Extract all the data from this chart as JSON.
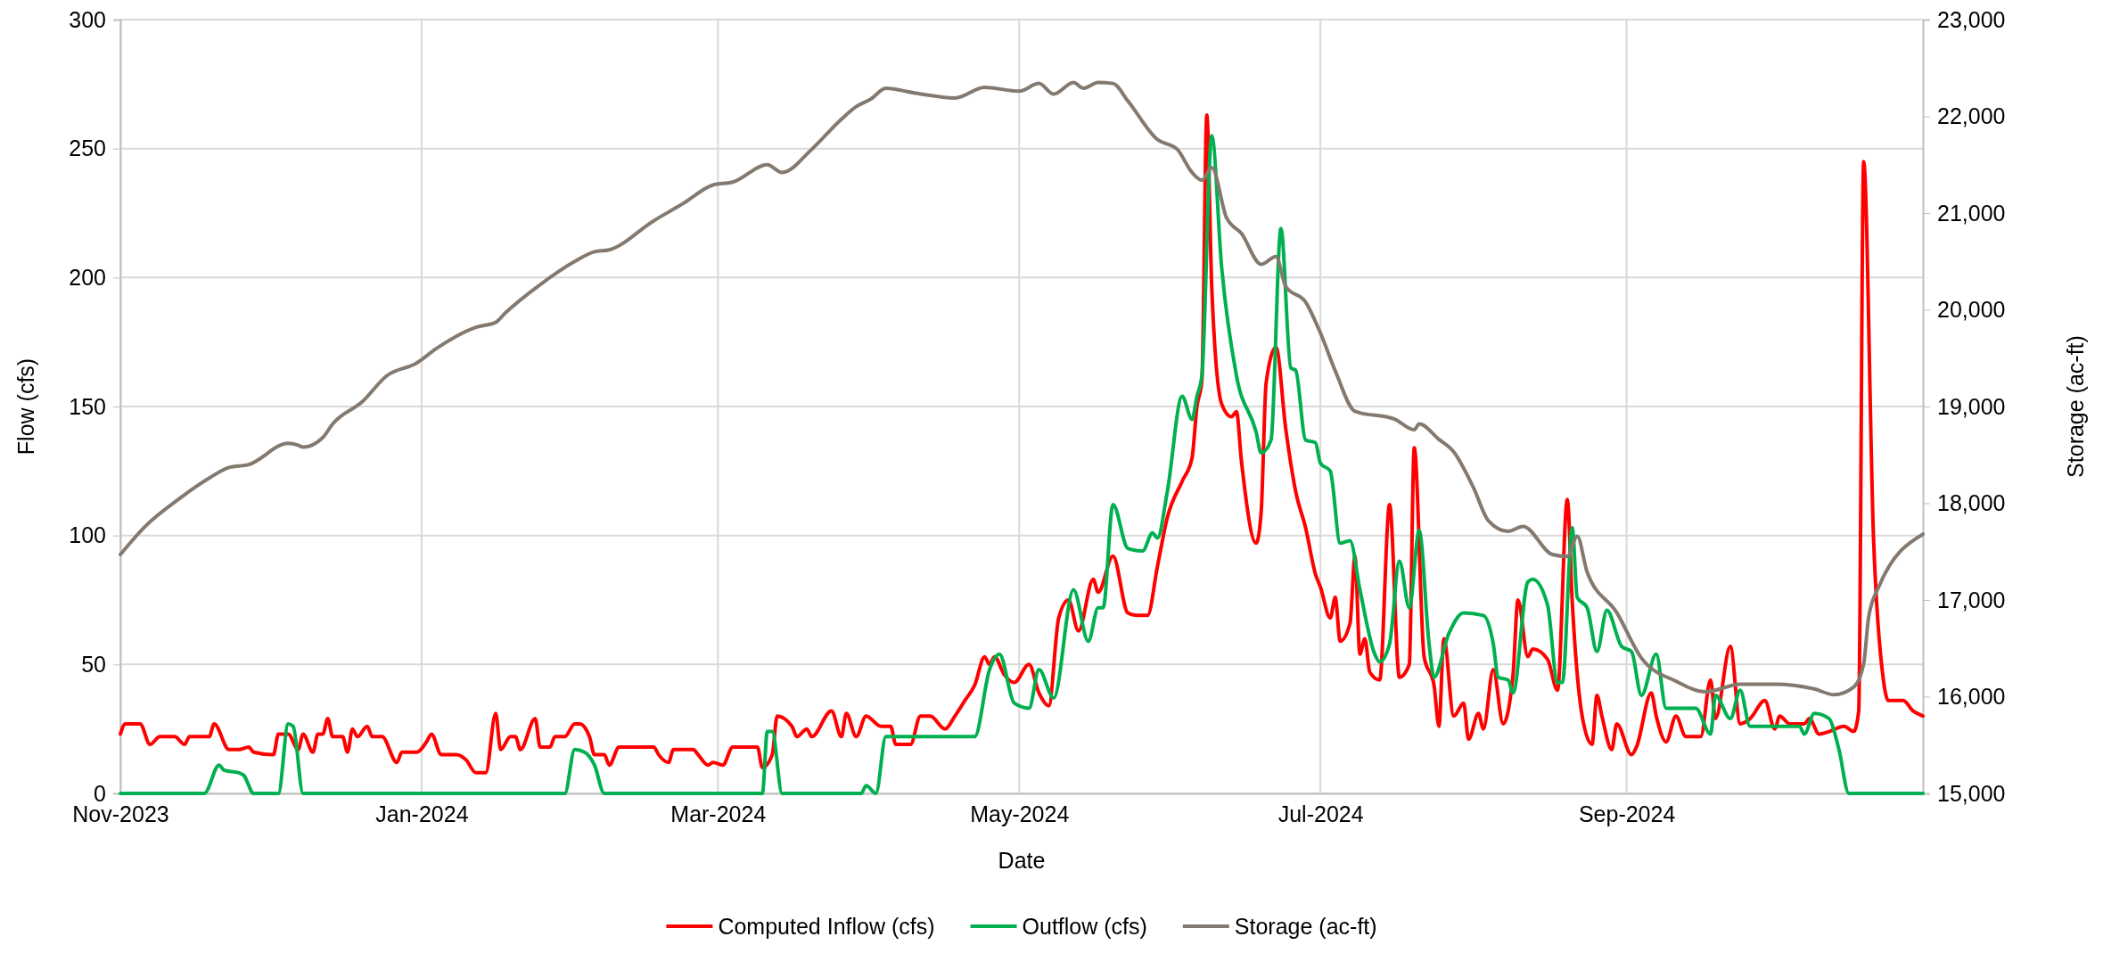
{
  "chart_data": {
    "type": "line",
    "xlabel": "Date",
    "ylabel": "Flow (cfs)",
    "y2label": "Storage (ac-ft)",
    "xlim": [
      "2023-11-01",
      "2024-10-31"
    ],
    "xticks": [
      {
        "value": "2023-11-01",
        "label": "Nov-2023"
      },
      {
        "value": "2024-01-01",
        "label": "Jan-2024"
      },
      {
        "value": "2024-03-01",
        "label": "Mar-2024"
      },
      {
        "value": "2024-05-01",
        "label": "May-2024"
      },
      {
        "value": "2024-07-01",
        "label": "Jul-2024"
      },
      {
        "value": "2024-09-01",
        "label": "Sep-2024"
      }
    ],
    "ylim": [
      0,
      300
    ],
    "yticks": [
      0,
      50,
      100,
      150,
      200,
      250,
      300
    ],
    "y2lim": [
      15000,
      23000
    ],
    "y2ticks": [
      {
        "value": 15000,
        "label": "15,000"
      },
      {
        "value": 16000,
        "label": "16,000"
      },
      {
        "value": 17000,
        "label": "17,000"
      },
      {
        "value": 18000,
        "label": "18,000"
      },
      {
        "value": 19000,
        "label": "19,000"
      },
      {
        "value": 20000,
        "label": "20,000"
      },
      {
        "value": 21000,
        "label": "21,000"
      },
      {
        "value": 22000,
        "label": "22,000"
      },
      {
        "value": 23000,
        "label": "23,000"
      }
    ],
    "grid": true,
    "legend": "bottom",
    "line_style": "solid",
    "marker": "none",
    "series": [
      {
        "name": "Computed Inflow (cfs)",
        "color": "#ff0000",
        "x": [
          "2023-11-01",
          "2023-11-02",
          "2023-11-05",
          "2023-11-07",
          "2023-11-09",
          "2023-11-12",
          "2023-11-14",
          "2023-11-15",
          "2023-11-19",
          "2023-11-20",
          "2023-11-23",
          "2023-11-25",
          "2023-11-27",
          "2023-11-28",
          "2023-12-02",
          "2023-12-03",
          "2023-12-05",
          "2023-12-07",
          "2023-12-08",
          "2023-12-10",
          "2023-12-11",
          "2023-12-12",
          "2023-12-13",
          "2023-12-14",
          "2023-12-16",
          "2023-12-17",
          "2023-12-18",
          "2023-12-19",
          "2023-12-21",
          "2023-12-22",
          "2023-12-24",
          "2023-12-27",
          "2023-12-28",
          "2023-12-31",
          "2024-01-02",
          "2024-01-03",
          "2024-01-05",
          "2024-01-08",
          "2024-01-10",
          "2024-01-12",
          "2024-01-14",
          "2024-01-16",
          "2024-01-17",
          "2024-01-19",
          "2024-01-20",
          "2024-01-21",
          "2024-01-24",
          "2024-01-25",
          "2024-01-27",
          "2024-01-28",
          "2024-01-30",
          "2024-02-01",
          "2024-02-02",
          "2024-02-04",
          "2024-02-05",
          "2024-02-07",
          "2024-02-08",
          "2024-02-10",
          "2024-02-11",
          "2024-02-17",
          "2024-02-18",
          "2024-02-20",
          "2024-02-21",
          "2024-02-25",
          "2024-02-26",
          "2024-02-28",
          "2024-02-29",
          "2024-03-02",
          "2024-03-04",
          "2024-03-09",
          "2024-03-10",
          "2024-03-12",
          "2024-03-13",
          "2024-03-16",
          "2024-03-17",
          "2024-03-19",
          "2024-03-20",
          "2024-03-24",
          "2024-03-26",
          "2024-03-27",
          "2024-03-29",
          "2024-03-31",
          "2024-04-03",
          "2024-04-05",
          "2024-04-06",
          "2024-04-09",
          "2024-04-11",
          "2024-04-13",
          "2024-04-16",
          "2024-04-18",
          "2024-04-20",
          "2024-04-22",
          "2024-04-24",
          "2024-04-25",
          "2024-04-26",
          "2024-04-28",
          "2024-04-30",
          "2024-05-03",
          "2024-05-05",
          "2024-05-07",
          "2024-05-09",
          "2024-05-11",
          "2024-05-13",
          "2024-05-16",
          "2024-05-17",
          "2024-05-20",
          "2024-05-23",
          "2024-05-25",
          "2024-05-27",
          "2024-05-29",
          "2024-05-31",
          "2024-06-03",
          "2024-06-05",
          "2024-06-06",
          "2024-06-07",
          "2024-06-08",
          "2024-06-09",
          "2024-06-11",
          "2024-06-13",
          "2024-06-14",
          "2024-06-15",
          "2024-06-18",
          "2024-06-19",
          "2024-06-20",
          "2024-06-22",
          "2024-06-24",
          "2024-06-26",
          "2024-06-28",
          "2024-06-30",
          "2024-07-01",
          "2024-07-03",
          "2024-07-04",
          "2024-07-05",
          "2024-07-07",
          "2024-07-08",
          "2024-07-09",
          "2024-07-10",
          "2024-07-11",
          "2024-07-13",
          "2024-07-15",
          "2024-07-17",
          "2024-07-19",
          "2024-07-20",
          "2024-07-22",
          "2024-07-24",
          "2024-07-25",
          "2024-07-26",
          "2024-07-28",
          "2024-07-30",
          "2024-07-31",
          "2024-08-02",
          "2024-08-03",
          "2024-08-05",
          "2024-08-07",
          "2024-08-09",
          "2024-08-10",
          "2024-08-12",
          "2024-08-13",
          "2024-08-16",
          "2024-08-18",
          "2024-08-20",
          "2024-08-21",
          "2024-08-23",
          "2024-08-25",
          "2024-08-26",
          "2024-08-27",
          "2024-08-29",
          "2024-08-30",
          "2024-09-02",
          "2024-09-03",
          "2024-09-06",
          "2024-09-07",
          "2024-09-09",
          "2024-09-11",
          "2024-09-13",
          "2024-09-16",
          "2024-09-18",
          "2024-09-19",
          "2024-09-22",
          "2024-09-24",
          "2024-09-26",
          "2024-09-29",
          "2024-10-01",
          "2024-10-02",
          "2024-10-04",
          "2024-10-07",
          "2024-10-08",
          "2024-10-10",
          "2024-10-12",
          "2024-10-15",
          "2024-10-17",
          "2024-10-18",
          "2024-10-19",
          "2024-10-21",
          "2024-10-23",
          "2024-10-24",
          "2024-10-27",
          "2024-10-29",
          "2024-10-31"
        ],
        "values": [
          23,
          27,
          27,
          19,
          22,
          22,
          19,
          22,
          22,
          27,
          17,
          17,
          18,
          16,
          15,
          23,
          23,
          17,
          23,
          16,
          23,
          23,
          29,
          22,
          22,
          16,
          25,
          22,
          26,
          22,
          22,
          12,
          16,
          16,
          20,
          23,
          15,
          15,
          13,
          8,
          8,
          31,
          17,
          22,
          22,
          17,
          29,
          18,
          18,
          22,
          22,
          27,
          27,
          22,
          15,
          15,
          11,
          18,
          18,
          18,
          15,
          12,
          17,
          17,
          15,
          11,
          12,
          11,
          18,
          18,
          10,
          15,
          30,
          26,
          22,
          25,
          22,
          32,
          22,
          31,
          22,
          30,
          26,
          26,
          19,
          19,
          30,
          30,
          25,
          30,
          36,
          42,
          53,
          50,
          53,
          46,
          43,
          50,
          39,
          34,
          68,
          75,
          63,
          83,
          78,
          92,
          70,
          69,
          69,
          88,
          107,
          121,
          130,
          150,
          160,
          263,
          196,
          151,
          146,
          148,
          129,
          97,
          109,
          159,
          173,
          141,
          117,
          103,
          85,
          80,
          68,
          76,
          59,
          66,
          92,
          54,
          60,
          47,
          44,
          112,
          45,
          50,
          134,
          53,
          42,
          26,
          60,
          30,
          35,
          21,
          31,
          25,
          48,
          27,
          46,
          75,
          53,
          56,
          52,
          40,
          114,
          74,
          30,
          19,
          38,
          30,
          17,
          27,
          15,
          18,
          39,
          30,
          20,
          30,
          22,
          22,
          44,
          29,
          57,
          27,
          29,
          36,
          25,
          30,
          27,
          27,
          29,
          23,
          24,
          26,
          24,
          32,
          245,
          99,
          44,
          36,
          36,
          32,
          30
        ]
      },
      {
        "name": "Outflow (cfs)",
        "color": "#00b050",
        "x": [
          "2023-11-01",
          "2023-11-18",
          "2023-11-21",
          "2023-11-22",
          "2023-11-25",
          "2023-11-26",
          "2023-11-28",
          "2023-12-03",
          "2023-12-05",
          "2023-12-06",
          "2023-12-08",
          "2024-01-30",
          "2024-02-01",
          "2024-02-03",
          "2024-02-05",
          "2024-02-07",
          "2024-03-10",
          "2024-03-11",
          "2024-03-12",
          "2024-03-14",
          "2024-03-30",
          "2024-03-31",
          "2024-04-02",
          "2024-04-04",
          "2024-04-22",
          "2024-04-25",
          "2024-04-27",
          "2024-04-30",
          "2024-05-03",
          "2024-05-05",
          "2024-05-08",
          "2024-05-12",
          "2024-05-15",
          "2024-05-17",
          "2024-05-18",
          "2024-05-20",
          "2024-05-23",
          "2024-05-26",
          "2024-05-28",
          "2024-05-29",
          "2024-05-31",
          "2024-06-03",
          "2024-06-05",
          "2024-06-06",
          "2024-06-07",
          "2024-06-09",
          "2024-06-11",
          "2024-06-14",
          "2024-06-18",
          "2024-06-19",
          "2024-06-21",
          "2024-06-23",
          "2024-06-25",
          "2024-06-26",
          "2024-06-28",
          "2024-06-30",
          "2024-07-01",
          "2024-07-03",
          "2024-07-05",
          "2024-07-07",
          "2024-07-09",
          "2024-07-12",
          "2024-07-13",
          "2024-07-15",
          "2024-07-17",
          "2024-07-19",
          "2024-07-21",
          "2024-07-23",
          "2024-07-24",
          "2024-07-27",
          "2024-07-30",
          "2024-08-03",
          "2024-08-05",
          "2024-08-06",
          "2024-08-08",
          "2024-08-09",
          "2024-08-12",
          "2024-08-13",
          "2024-08-16",
          "2024-08-18",
          "2024-08-19",
          "2024-08-21",
          "2024-08-22",
          "2024-08-24",
          "2024-08-26",
          "2024-08-28",
          "2024-08-31",
          "2024-09-02",
          "2024-09-04",
          "2024-09-07",
          "2024-09-09",
          "2024-09-15",
          "2024-09-18",
          "2024-09-19",
          "2024-09-22",
          "2024-09-24",
          "2024-09-26",
          "2024-10-06",
          "2024-10-07",
          "2024-10-09",
          "2024-10-12",
          "2024-10-14",
          "2024-10-16",
          "2024-10-31"
        ],
        "values": [
          0,
          0,
          11,
          9,
          8,
          7,
          0,
          0,
          27,
          26,
          0,
          0,
          17,
          16,
          11,
          0,
          0,
          24,
          24,
          0,
          0,
          3,
          0,
          22,
          22,
          48,
          54,
          35,
          33,
          48,
          37,
          79,
          59,
          72,
          72,
          112,
          95,
          94,
          101,
          99,
          117,
          154,
          145,
          154,
          162,
          255,
          204,
          162,
          140,
          132,
          137,
          219,
          165,
          164,
          137,
          136,
          128,
          125,
          97,
          98,
          79,
          54,
          51,
          58,
          90,
          72,
          102,
          58,
          45,
          62,
          70,
          69,
          58,
          45,
          44,
          39,
          82,
          83,
          73,
          43,
          43,
          103,
          76,
          72,
          55,
          71,
          57,
          55,
          38,
          54,
          33,
          33,
          23,
          38,
          29,
          40,
          26,
          26,
          23,
          31,
          29,
          17,
          0,
          0
        ]
      },
      {
        "name": "Storage (ac-ft)",
        "color": "#84796f",
        "axis": "y2",
        "x": [
          "2023-11-01",
          "2023-11-06",
          "2023-11-13",
          "2023-11-19",
          "2023-11-23",
          "2023-11-27",
          "2023-12-05",
          "2023-12-07",
          "2023-12-08",
          "2023-12-12",
          "2023-12-14",
          "2023-12-20",
          "2023-12-25",
          "2023-12-31",
          "2024-01-04",
          "2024-01-12",
          "2024-01-16",
          "2024-01-18",
          "2024-01-25",
          "2024-02-01",
          "2024-02-05",
          "2024-02-08",
          "2024-02-17",
          "2024-02-23",
          "2024-02-29",
          "2024-03-04",
          "2024-03-11",
          "2024-03-14",
          "2024-03-20",
          "2024-03-26",
          "2024-03-29",
          "2024-04-01",
          "2024-04-04",
          "2024-04-10",
          "2024-04-18",
          "2024-04-24",
          "2024-05-01",
          "2024-05-05",
          "2024-05-08",
          "2024-05-12",
          "2024-05-14",
          "2024-05-17",
          "2024-05-20",
          "2024-05-23",
          "2024-05-29",
          "2024-06-02",
          "2024-06-05",
          "2024-06-07",
          "2024-06-09",
          "2024-06-12",
          "2024-06-15",
          "2024-06-19",
          "2024-06-22",
          "2024-06-24",
          "2024-06-28",
          "2024-07-01",
          "2024-07-04",
          "2024-07-08",
          "2024-07-16",
          "2024-07-20",
          "2024-07-21",
          "2024-07-25",
          "2024-07-28",
          "2024-08-01",
          "2024-08-04",
          "2024-08-08",
          "2024-08-11",
          "2024-08-17",
          "2024-08-20",
          "2024-08-22",
          "2024-08-24",
          "2024-08-30",
          "2024-09-04",
          "2024-09-11",
          "2024-09-17",
          "2024-09-24",
          "2024-10-01",
          "2024-10-09",
          "2024-10-13",
          "2024-10-17",
          "2024-10-19",
          "2024-10-20",
          "2024-10-22",
          "2024-10-31"
        ],
        "values": [
          17470,
          17760,
          18050,
          18260,
          18370,
          18400,
          18620,
          18600,
          18580,
          18680,
          18820,
          19050,
          19320,
          19450,
          19600,
          19820,
          19870,
          19970,
          20260,
          20500,
          20600,
          20620,
          20920,
          21100,
          21290,
          21320,
          21500,
          21420,
          21660,
          21970,
          22100,
          22180,
          22290,
          22240,
          22190,
          22300,
          22260,
          22340,
          22230,
          22350,
          22290,
          22350,
          22340,
          22160,
          21760,
          21660,
          21420,
          21340,
          21470,
          20950,
          20790,
          20470,
          20550,
          20240,
          20080,
          19760,
          19370,
          18950,
          18870,
          18760,
          18820,
          18660,
          18530,
          18160,
          17820,
          17710,
          17760,
          17470,
          17450,
          17660,
          17290,
          16870,
          16400,
          16160,
          16050,
          16130,
          16130,
          16080,
          16020,
          16100,
          16340,
          16820,
          17130,
          17680
        ]
      }
    ]
  }
}
